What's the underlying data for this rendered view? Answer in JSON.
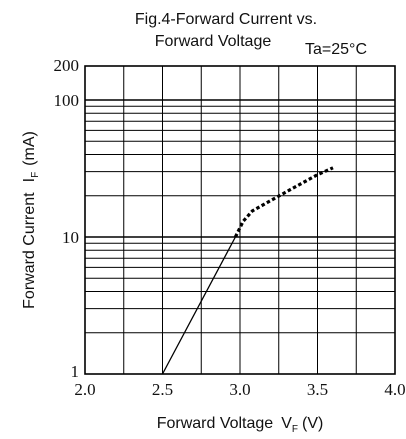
{
  "chart_data": {
    "type": "line",
    "title_line1": "Fig.4-Forward Current vs.",
    "title_line2": "Forward Voltage",
    "condition": "Ta=25°C",
    "xlabel": "Forward Voltage",
    "xlabel_sym": "V",
    "xlabel_sub": "F",
    "xlabel_unit": "(V)",
    "ylabel": "Forward Current",
    "ylabel_sym": "I",
    "ylabel_sub": "F",
    "ylabel_unit": "(mA)",
    "x_scale": "linear",
    "y_scale": "log",
    "xlim": [
      2.0,
      4.0
    ],
    "ylim": [
      1,
      200
    ],
    "x_ticks": [
      "2.0",
      "2.5",
      "3.0",
      "3.5",
      "4.0"
    ],
    "y_ticks": [
      "1",
      "10",
      "100",
      "200"
    ],
    "grid": true,
    "series": [
      {
        "style": "solid",
        "x": [
          2.5,
          2.97
        ],
        "y": [
          1,
          10
        ]
      },
      {
        "style": "dotted",
        "x": [
          2.97,
          3.02,
          3.08,
          3.2,
          3.35,
          3.5,
          3.6
        ],
        "y": [
          10,
          13,
          15.5,
          18.5,
          23,
          28.5,
          32
        ]
      }
    ]
  }
}
